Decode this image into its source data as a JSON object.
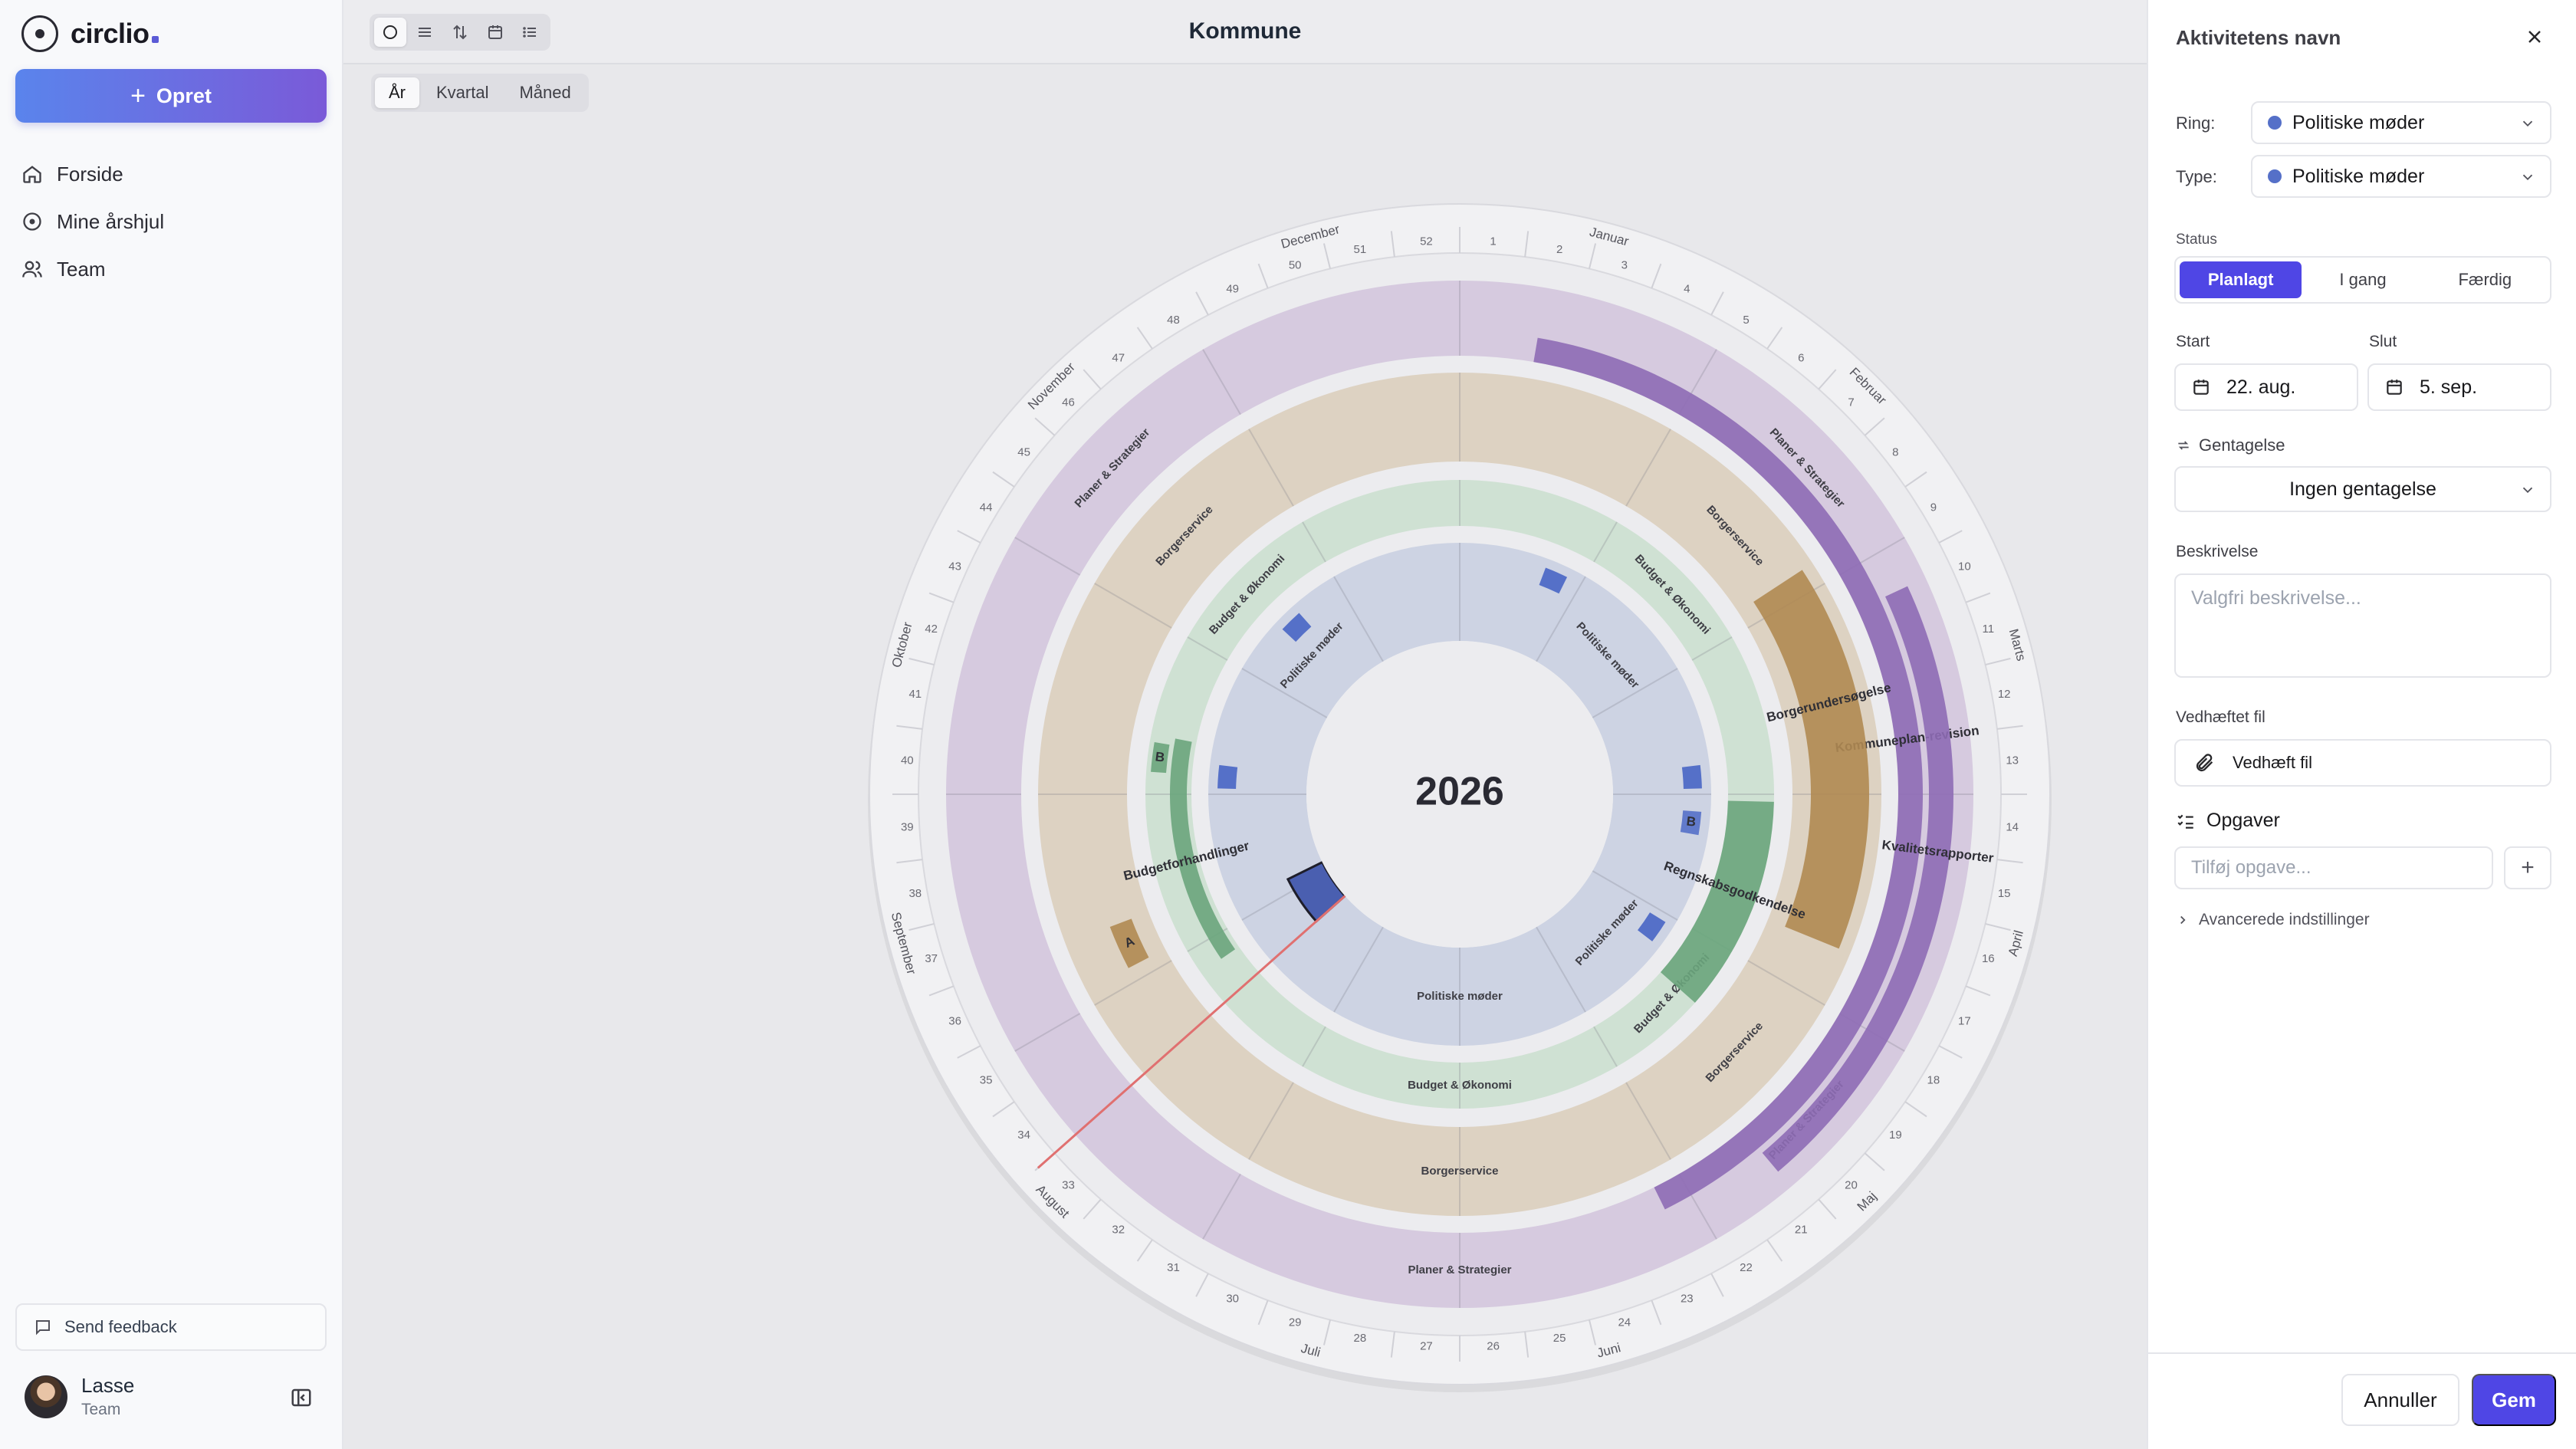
{
  "app": {
    "name": "circlio"
  },
  "sidebar": {
    "create_label": "Opret",
    "items": [
      {
        "label": "Forside",
        "icon": "home-icon"
      },
      {
        "label": "Mine årshjul",
        "icon": "circle-icon"
      },
      {
        "label": "Team",
        "icon": "users-icon"
      }
    ],
    "feedback_label": "Send feedback",
    "user": {
      "name": "Lasse",
      "role": "Team"
    }
  },
  "header": {
    "title": "Kommune",
    "range_tabs": [
      "År",
      "Kvartal",
      "Måned"
    ],
    "active_range": "År"
  },
  "wheel": {
    "year": "2026",
    "months": [
      "Januar",
      "Februar",
      "Marts",
      "April",
      "Maj",
      "Juni",
      "Juli",
      "August",
      "September",
      "Oktober",
      "November",
      "December"
    ],
    "rings": [
      {
        "name": "Planer & Strategier",
        "color": "#d6cadf",
        "accent": "#8e6bb5"
      },
      {
        "name": "Borgerservice",
        "color": "#ddd2c2",
        "accent": "#b08a52"
      },
      {
        "name": "Budget & Økonomi",
        "color": "#cfe1d3",
        "accent": "#6aa57c"
      },
      {
        "name": "Politiske møder",
        "color": "#cdd3e3",
        "accent": "#5570c8"
      }
    ],
    "activities": [
      {
        "ring": "Planer & Strategier",
        "label": "Kommuneplan-revision"
      },
      {
        "ring": "Planer & Strategier",
        "label": "Kvalitetsrapporter"
      },
      {
        "ring": "Borgerservice",
        "label": "Borgerundersøgelse"
      },
      {
        "ring": "Borgerservice",
        "label": "A"
      },
      {
        "ring": "Budget & Økonomi",
        "label": "Regnskabsgodkendelse"
      },
      {
        "ring": "Budget & Økonomi",
        "label": "Budgetforhandlinger"
      },
      {
        "ring": "Budget & Økonomi",
        "label": "B"
      },
      {
        "ring": "Politiske møder",
        "label": "B"
      }
    ]
  },
  "panel": {
    "title": "Aktivitetens navn",
    "ring_label": "Ring:",
    "ring_value": "Politiske møder",
    "type_label": "Type:",
    "type_value": "Politiske møder",
    "status_label": "Status",
    "status_options": [
      "Planlagt",
      "I gang",
      "Færdig"
    ],
    "status_active": "Planlagt",
    "start_label": "Start",
    "start_value": "22. aug.",
    "end_label": "Slut",
    "end_value": "5. sep.",
    "repeat_label": "Gentagelse",
    "repeat_value": "Ingen gentagelse",
    "description_label": "Beskrivelse",
    "description_placeholder": "Valgfri beskrivelse...",
    "attachment_label": "Vedhæftet fil",
    "attach_button": "Vedhæft fil",
    "tasks_label": "Opgaver",
    "task_placeholder": "Tilføj opgave...",
    "advanced_label": "Avancerede indstillinger",
    "cancel_label": "Annuller",
    "save_label": "Gem"
  },
  "colors": {
    "accent": "#4f46e5",
    "today_line": "#e07070"
  }
}
